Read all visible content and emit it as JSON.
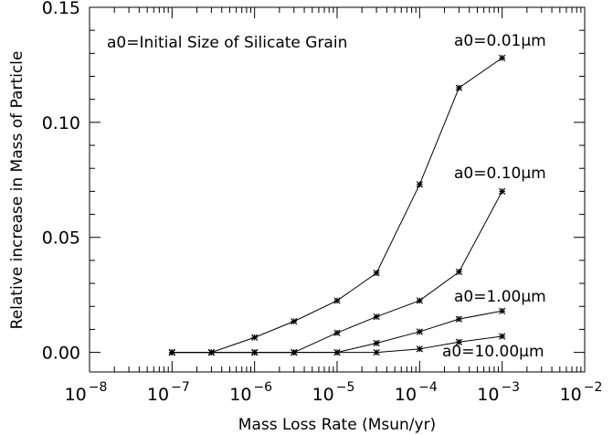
{
  "chart_data": {
    "type": "line",
    "xscale": "log",
    "xlim": [
      1e-08,
      0.01
    ],
    "ylim": [
      -0.0085,
      0.15
    ],
    "xlabel": "Mass Loss Rate (Msun/yr)",
    "ylabel": "Relative increase in Mass of Particle",
    "annotation": "a0=Initial Size of Silicate Grain",
    "x_tick_values": [
      1e-08,
      1e-07,
      1e-06,
      1e-05,
      0.0001,
      0.001,
      0.01
    ],
    "x_tick_labels": [
      {
        "base": "10",
        "exp": "−8"
      },
      {
        "base": "10",
        "exp": "−7"
      },
      {
        "base": "10",
        "exp": "−6"
      },
      {
        "base": "10",
        "exp": "−5"
      },
      {
        "base": "10",
        "exp": "−4"
      },
      {
        "base": "10",
        "exp": "−3"
      },
      {
        "base": "10",
        "exp": "−2"
      }
    ],
    "y_ticks": [
      0.0,
      0.05,
      0.1,
      0.15
    ],
    "y_tick_labels": [
      "0.00",
      "0.05",
      "0.10",
      "0.15"
    ],
    "marker": "asterisk",
    "grid": false,
    "x": [
      1e-07,
      3e-07,
      1e-06,
      3e-06,
      1e-05,
      3e-05,
      0.0001,
      0.0003,
      0.001
    ],
    "series": [
      {
        "name": "a0=0.01μm",
        "values": [
          0.0,
          0.0,
          0.0065,
          0.0135,
          0.0225,
          0.0345,
          0.073,
          0.115,
          0.128
        ]
      },
      {
        "name": "a0=0.10μm",
        "values": [
          0.0,
          0.0,
          0.0,
          0.0,
          0.0085,
          0.0155,
          0.0225,
          0.035,
          0.07
        ]
      },
      {
        "name": "a0=1.00μm",
        "values": [
          0.0,
          0.0,
          0.0,
          0.0,
          0.0,
          0.004,
          0.009,
          0.0145,
          0.018
        ]
      },
      {
        "name": "a0=10.00μm",
        "values": [
          0.0,
          0.0,
          0.0,
          0.0,
          0.0,
          0.0,
          0.0015,
          0.0045,
          0.007
        ]
      }
    ]
  }
}
